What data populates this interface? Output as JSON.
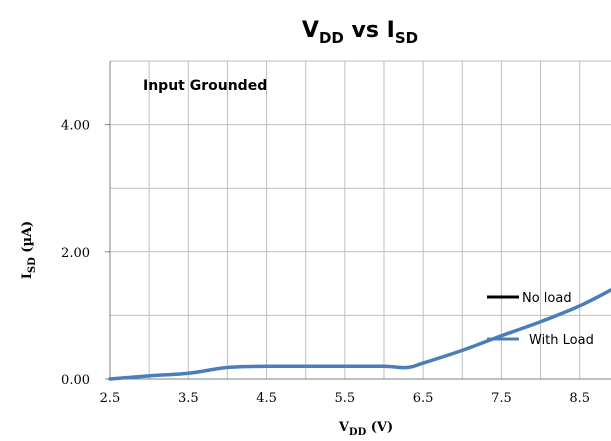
{
  "chart_data": {
    "type": "line",
    "title": {
      "main": "V",
      "main_sub": "DD",
      "mid": " vs I",
      "end_sub": "SD"
    },
    "annotation": "Input Grounded",
    "xlabel": {
      "main": "V",
      "sub": "DD",
      "tail": " (V)"
    },
    "ylabel": {
      "main": "I",
      "sub": "SD",
      "tail": " (µA)"
    },
    "xlim": [
      2.5,
      8.9
    ],
    "ylim": [
      0,
      5
    ],
    "x_ticks": [
      "2.5",
      "3.5",
      "4.5",
      "5.5",
      "6.5",
      "7.5",
      "8.5"
    ],
    "x_tick_values": [
      2.5,
      3.5,
      4.5,
      5.5,
      6.5,
      7.5,
      8.5
    ],
    "x_grid": [
      2.5,
      3.0,
      3.5,
      4.0,
      4.5,
      5.0,
      5.5,
      6.0,
      6.5,
      7.0,
      7.5,
      8.0,
      8.5
    ],
    "y_ticks": [
      "0.00",
      "2.00",
      "4.00"
    ],
    "y_tick_values": [
      0,
      2,
      4
    ],
    "y_grid": [
      0,
      1,
      2,
      3,
      4,
      5
    ],
    "grid": true,
    "legend_position": "right",
    "colors": {
      "no_load": "#000000",
      "with_load": "#4a7ebb",
      "grid": "#bfbfbf"
    },
    "series": [
      {
        "name": "No load",
        "x": [
          2.5,
          3.0,
          3.5,
          4.0,
          4.5,
          5.0,
          5.5,
          6.0,
          6.3,
          6.5,
          7.0,
          7.5,
          8.0,
          8.5,
          8.9
        ],
        "y": [
          0,
          0.05,
          0.09,
          0.18,
          0.2,
          0.2,
          0.2,
          0.2,
          0.18,
          0.25,
          0.45,
          0.68,
          0.9,
          1.15,
          1.4
        ]
      },
      {
        "name": "With Load",
        "x": [
          2.5,
          3.0,
          3.5,
          4.0,
          4.5,
          5.0,
          5.5,
          6.0,
          6.3,
          6.5,
          7.0,
          7.5,
          8.0,
          8.5,
          8.9
        ],
        "y": [
          0,
          0.05,
          0.09,
          0.18,
          0.2,
          0.2,
          0.2,
          0.2,
          0.18,
          0.25,
          0.45,
          0.68,
          0.9,
          1.15,
          1.4
        ]
      }
    ]
  }
}
